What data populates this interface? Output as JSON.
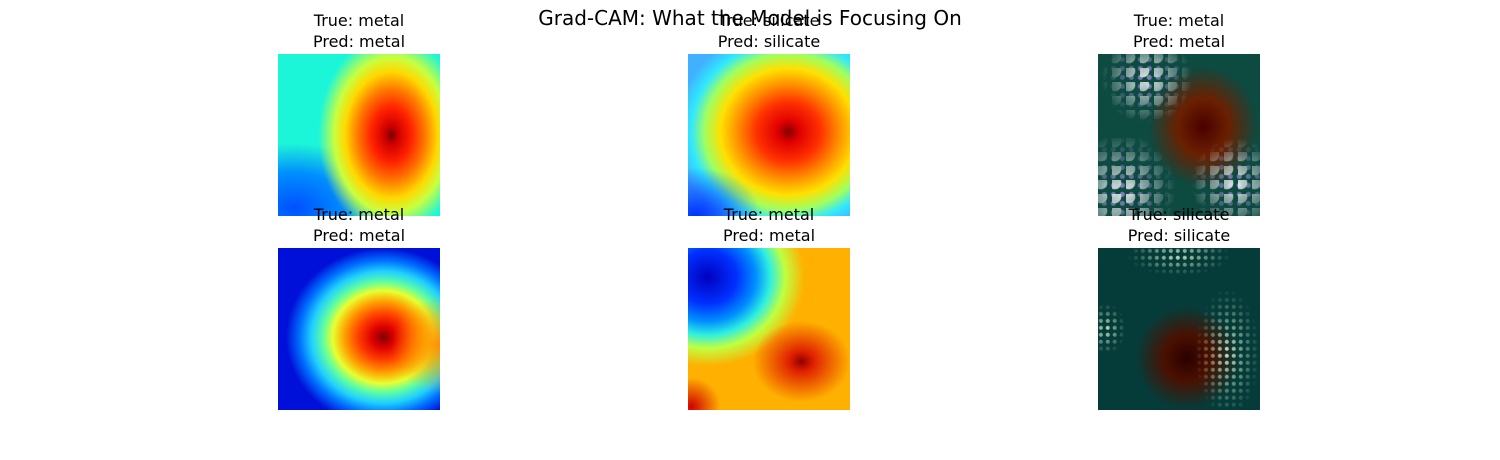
{
  "figure": {
    "title": "Grad-CAM: What the Model is Focusing On"
  },
  "panels": [
    {
      "true_label": "True: metal",
      "pred_label": "Pred: metal",
      "kind": "heatmap"
    },
    {
      "true_label": "True: silicate",
      "pred_label": "Pred: silicate",
      "kind": "heatmap"
    },
    {
      "true_label": "True: metal",
      "pred_label": "Pred: metal",
      "kind": "overlay"
    },
    {
      "true_label": "True: metal",
      "pred_label": "Pred: metal",
      "kind": "heatmap"
    },
    {
      "true_label": "True: metal",
      "pred_label": "Pred: metal",
      "kind": "heatmap"
    },
    {
      "true_label": "True: silicate",
      "pred_label": "Pred: silicate",
      "kind": "overlay"
    }
  ],
  "colormap": "jet"
}
